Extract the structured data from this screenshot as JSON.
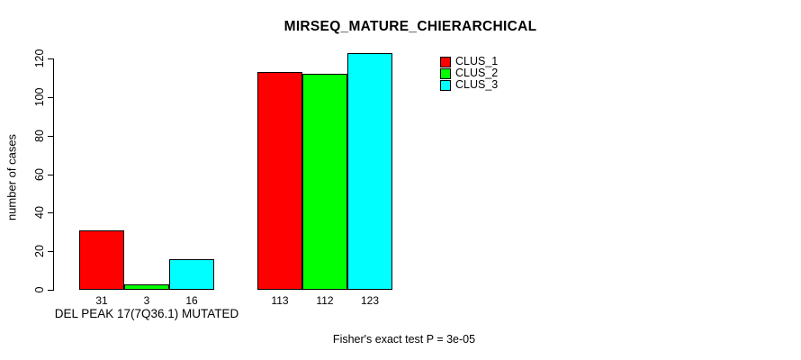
{
  "chart_data": {
    "type": "bar",
    "title": "MIRSEQ_MATURE_CHIERARCHICAL",
    "ylabel": "number of cases",
    "xlabel": "",
    "categories": [
      "DEL PEAK 17(7Q36.1) MUTATED",
      ""
    ],
    "series": [
      {
        "name": "CLUS_1",
        "color": "#ff0000",
        "values": [
          31,
          113
        ]
      },
      {
        "name": "CLUS_2",
        "color": "#00ff00",
        "values": [
          3,
          112
        ]
      },
      {
        "name": "CLUS_3",
        "color": "#00ffff",
        "values": [
          16,
          123
        ]
      }
    ],
    "bar_value_labels": [
      [
        31,
        3,
        16
      ],
      [
        113,
        112,
        123
      ]
    ],
    "ylim": [
      0,
      120
    ],
    "yticks": [
      0,
      20,
      40,
      60,
      80,
      100,
      120
    ],
    "grid": false,
    "legend_entries": [
      "CLUS_1",
      "CLUS_2",
      "CLUS_3"
    ],
    "legend_position": "top-right-inside",
    "annotation": "Fisher's exact test P = 3e-05"
  },
  "colors": {
    "background": "#ffffff",
    "axis": "#000000",
    "text": "#000000",
    "bar_border": "#000000",
    "clus_1": "#ff0000",
    "clus_2": "#00ff00",
    "clus_3": "#00ffff"
  }
}
